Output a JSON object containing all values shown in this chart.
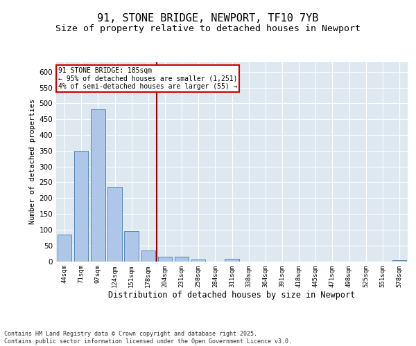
{
  "title1": "91, STONE BRIDGE, NEWPORT, TF10 7YB",
  "title2": "Size of property relative to detached houses in Newport",
  "xlabel": "Distribution of detached houses by size in Newport",
  "ylabel": "Number of detached properties",
  "categories": [
    "44sqm",
    "71sqm",
    "97sqm",
    "124sqm",
    "151sqm",
    "178sqm",
    "204sqm",
    "231sqm",
    "258sqm",
    "284sqm",
    "311sqm",
    "338sqm",
    "364sqm",
    "391sqm",
    "418sqm",
    "445sqm",
    "471sqm",
    "498sqm",
    "525sqm",
    "551sqm",
    "578sqm"
  ],
  "values": [
    85,
    350,
    480,
    235,
    95,
    35,
    15,
    15,
    5,
    0,
    8,
    0,
    0,
    0,
    0,
    0,
    0,
    0,
    0,
    0,
    3
  ],
  "bar_color": "#aec6e8",
  "bar_edge_color": "#5588bb",
  "vline_x": 5.5,
  "vline_color": "#990000",
  "annotation_text": "91 STONE BRIDGE: 185sqm\n← 95% of detached houses are smaller (1,251)\n4% of semi-detached houses are larger (55) →",
  "annotation_box_color": "#ffffff",
  "annotation_box_edge": "#cc0000",
  "ylim": [
    0,
    630
  ],
  "yticks": [
    0,
    50,
    100,
    150,
    200,
    250,
    300,
    350,
    400,
    450,
    500,
    550,
    600
  ],
  "background_color": "#dde8f0",
  "footer": "Contains HM Land Registry data © Crown copyright and database right 2025.\nContains public sector information licensed under the Open Government Licence v3.0.",
  "title_fontsize": 11,
  "subtitle_fontsize": 9.5
}
